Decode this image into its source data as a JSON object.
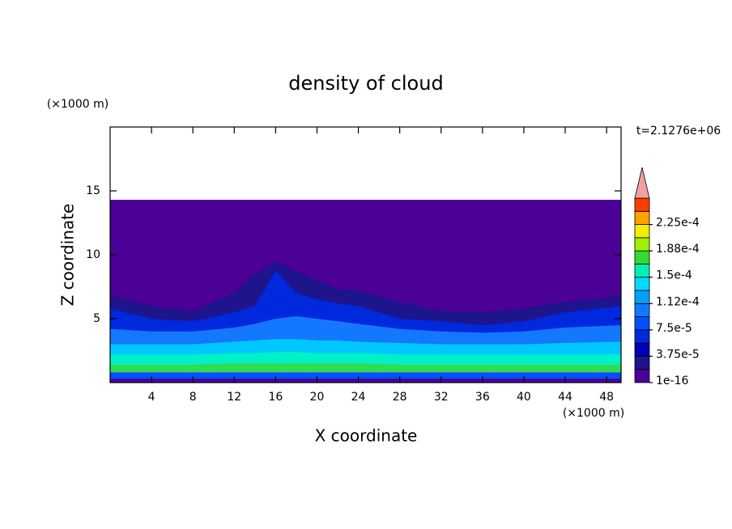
{
  "chart_data": {
    "type": "contour",
    "title": "density of cloud",
    "xlabel": "X coordinate",
    "ylabel": "Z coordinate",
    "xunit": "(×1000 m)",
    "yunit": "(×1000 m)",
    "annotation": "t=2.1276e+06",
    "xlim": [
      0,
      49.4
    ],
    "ylim": [
      0,
      20
    ],
    "xticks": [
      4,
      8,
      12,
      16,
      20,
      24,
      28,
      32,
      36,
      40,
      44,
      48
    ],
    "yticks": [
      5,
      10,
      15
    ],
    "field": {
      "x": [
        0,
        4,
        8,
        12,
        14,
        16,
        18,
        20,
        22,
        24,
        28,
        32,
        36,
        40,
        44,
        49.4
      ],
      "layers": [
        {
          "color": "#4b0096",
          "top": [
            14.3,
            14.3,
            14.3,
            14.3,
            14.3,
            14.3,
            14.3,
            14.3,
            14.3,
            14.3,
            14.3,
            14.3,
            14.3,
            14.3,
            14.3,
            14.3
          ]
        },
        {
          "color": "#1e148c",
          "top": [
            6.8,
            6,
            5.6,
            7,
            8.5,
            9.5,
            8.7,
            8,
            7.3,
            7.2,
            6.3,
            5.6,
            5.5,
            5.8,
            6.3,
            6.8
          ]
        },
        {
          "color": "#0028dc",
          "top": [
            5.8,
            5,
            4.8,
            5.5,
            6,
            8.8,
            7,
            6.5,
            6.2,
            6,
            5,
            4.8,
            4.5,
            4.8,
            5.5,
            6
          ]
        },
        {
          "color": "#1478ff",
          "top": [
            4.2,
            4,
            4,
            4.3,
            4.6,
            5,
            5.2,
            5,
            4.8,
            4.6,
            4.2,
            4,
            3.9,
            4,
            4.3,
            4.5
          ]
        },
        {
          "color": "#00c8ff",
          "top": [
            3,
            3,
            3,
            3.2,
            3.3,
            3.4,
            3.4,
            3.3,
            3.3,
            3.2,
            3.1,
            3,
            3,
            3,
            3.1,
            3.2
          ]
        },
        {
          "color": "#00f0c8",
          "top": [
            2.2,
            2.2,
            2.2,
            2.3,
            2.3,
            2.4,
            2.4,
            2.3,
            2.3,
            2.3,
            2.2,
            2.2,
            2.2,
            2.2,
            2.2,
            2.2
          ]
        },
        {
          "color": "#32dc50",
          "top": [
            1.4,
            1.4,
            1.4,
            1.5,
            1.5,
            1.5,
            1.5,
            1.5,
            1.5,
            1.5,
            1.4,
            1.4,
            1.4,
            1.4,
            1.4,
            1.4
          ]
        },
        {
          "color": "#0050ff",
          "top": [
            0.8,
            0.8,
            0.8,
            0.8,
            0.8,
            0.8,
            0.8,
            0.8,
            0.8,
            0.8,
            0.8,
            0.8,
            0.8,
            0.8,
            0.8,
            0.8
          ]
        },
        {
          "color": "#4b0096",
          "top": [
            0.3,
            0.3,
            0.3,
            0.3,
            0.3,
            0.3,
            0.3,
            0.3,
            0.3,
            0.3,
            0.3,
            0.3,
            0.3,
            0.3,
            0.3,
            0.3
          ]
        }
      ]
    },
    "colorbar": {
      "lim": [
        0,
        0.0002625
      ],
      "colors": [
        "#4b0096",
        "#1e148c",
        "#0000b4",
        "#0028dc",
        "#0050ff",
        "#1478ff",
        "#00a0ff",
        "#00dcff",
        "#00f0b4",
        "#32dc32",
        "#a0f000",
        "#f0f000",
        "#ffa000",
        "#ff3c00"
      ],
      "extend_color": "#f0a0a0",
      "ticks": [
        1e-16,
        {
          "value": 3.75e-05,
          "label": "3.75e-5"
        },
        {
          "value": 7.5e-05,
          "label": "7.5e-5"
        },
        {
          "value": 0.0001125,
          "label": "1.12e-4"
        },
        {
          "value": 0.00015,
          "label": "1.5e-4"
        },
        {
          "value": 0.0001875,
          "label": "1.88e-4"
        },
        {
          "value": 0.000225,
          "label": "2.25e-4"
        }
      ]
    }
  }
}
